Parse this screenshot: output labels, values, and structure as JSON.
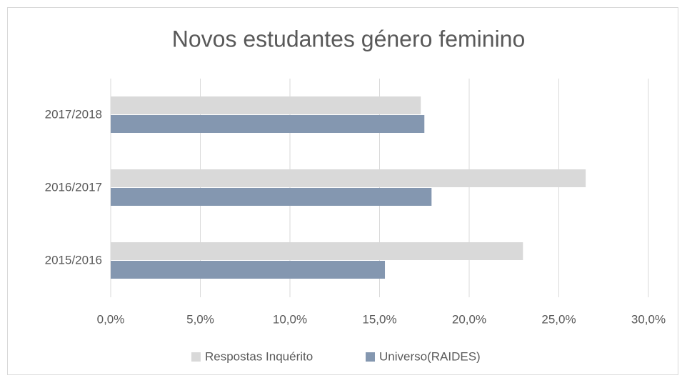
{
  "chart_data": {
    "type": "barh",
    "title": "Novos estudantes género feminino",
    "categories": [
      "2015/2016",
      "2016/2017",
      "2017/2018"
    ],
    "series": [
      {
        "name": "Respostas Inquérito",
        "color": "#d9d9d9",
        "values": [
          23.0,
          26.5,
          17.3
        ]
      },
      {
        "name": "Universo(RAIDES)",
        "color": "#8497b0",
        "values": [
          15.3,
          17.9,
          17.5
        ]
      }
    ],
    "xlim": [
      0,
      30
    ],
    "xticks": [
      {
        "value": 0,
        "label": "0,0%"
      },
      {
        "value": 5,
        "label": "5,0%"
      },
      {
        "value": 10,
        "label": "10,0%"
      },
      {
        "value": 15,
        "label": "15,0%"
      },
      {
        "value": 20,
        "label": "20,0%"
      },
      {
        "value": 25,
        "label": "25,0%"
      },
      {
        "value": 30,
        "label": "30,0%"
      }
    ],
    "grid": true,
    "legend": "bottom"
  }
}
